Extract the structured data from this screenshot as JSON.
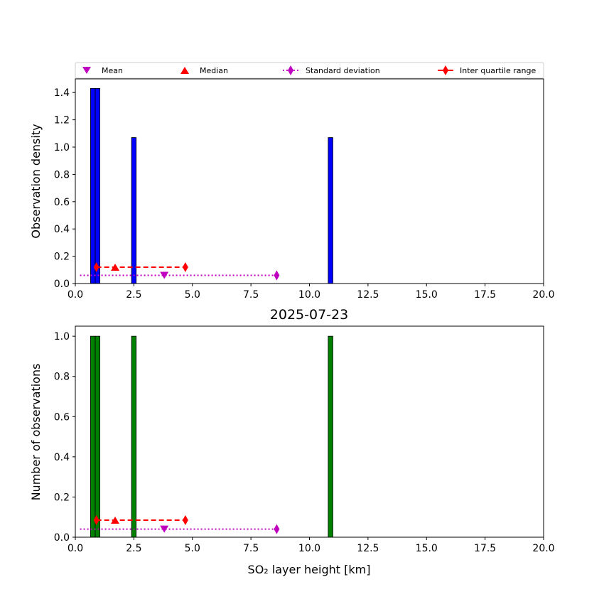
{
  "figure_title": "2025-07-23",
  "legend": {
    "mean": "Mean",
    "median": "Median",
    "std": "Standard deviation",
    "iqr": "Inter quartile range"
  },
  "colors": {
    "density_bars": "#0000ff",
    "count_bars": "#008000",
    "mean": "#bf00bf",
    "median": "#ff0000",
    "std": "#bf00bf",
    "iqr": "#ff0000"
  },
  "chart_data": [
    {
      "type": "bar",
      "panel": "top",
      "ylabel": "Observation density",
      "xlabel": "",
      "xlim": [
        0,
        20
      ],
      "ylim": [
        0,
        1.5
      ],
      "x_ticks": [
        0,
        2.5,
        5,
        7.5,
        10,
        12.5,
        15,
        17.5,
        20
      ],
      "y_ticks": [
        0,
        0.2,
        0.4,
        0.6,
        0.8,
        1.0,
        1.2,
        1.4
      ],
      "bars": [
        {
          "start": 0.65,
          "end": 0.85,
          "value": 1.43
        },
        {
          "start": 0.85,
          "end": 1.05,
          "value": 1.43
        },
        {
          "start": 2.4,
          "end": 2.6,
          "value": 1.07
        },
        {
          "start": 10.8,
          "end": 11.0,
          "value": 1.07
        }
      ],
      "stats": {
        "mean": {
          "x": 3.8,
          "y": 0.06
        },
        "median": {
          "x": 1.7,
          "y": 0.12
        },
        "std": {
          "x_from": 0.2,
          "x_to": 8.6,
          "y": 0.06
        },
        "iqr": {
          "x_from": 0.9,
          "x_to": 4.7,
          "y": 0.12
        }
      }
    },
    {
      "type": "bar",
      "panel": "bottom",
      "ylabel": "Number of observations",
      "xlabel": "SO₂ layer height [km]",
      "xlim": [
        0,
        20
      ],
      "ylim": [
        0,
        1.05
      ],
      "x_ticks": [
        0,
        2.5,
        5,
        7.5,
        10,
        12.5,
        15,
        17.5,
        20
      ],
      "y_ticks": [
        0,
        0.2,
        0.4,
        0.6,
        0.8,
        1.0
      ],
      "bars": [
        {
          "start": 0.65,
          "end": 0.85,
          "value": 1.0
        },
        {
          "start": 0.85,
          "end": 1.05,
          "value": 1.0
        },
        {
          "start": 2.4,
          "end": 2.6,
          "value": 1.0
        },
        {
          "start": 10.8,
          "end": 11.0,
          "value": 1.0
        }
      ],
      "stats": {
        "mean": {
          "x": 3.8,
          "y": 0.04
        },
        "median": {
          "x": 1.7,
          "y": 0.085
        },
        "std": {
          "x_from": 0.2,
          "x_to": 8.6,
          "y": 0.04
        },
        "iqr": {
          "x_from": 0.9,
          "x_to": 4.7,
          "y": 0.085
        }
      }
    }
  ]
}
